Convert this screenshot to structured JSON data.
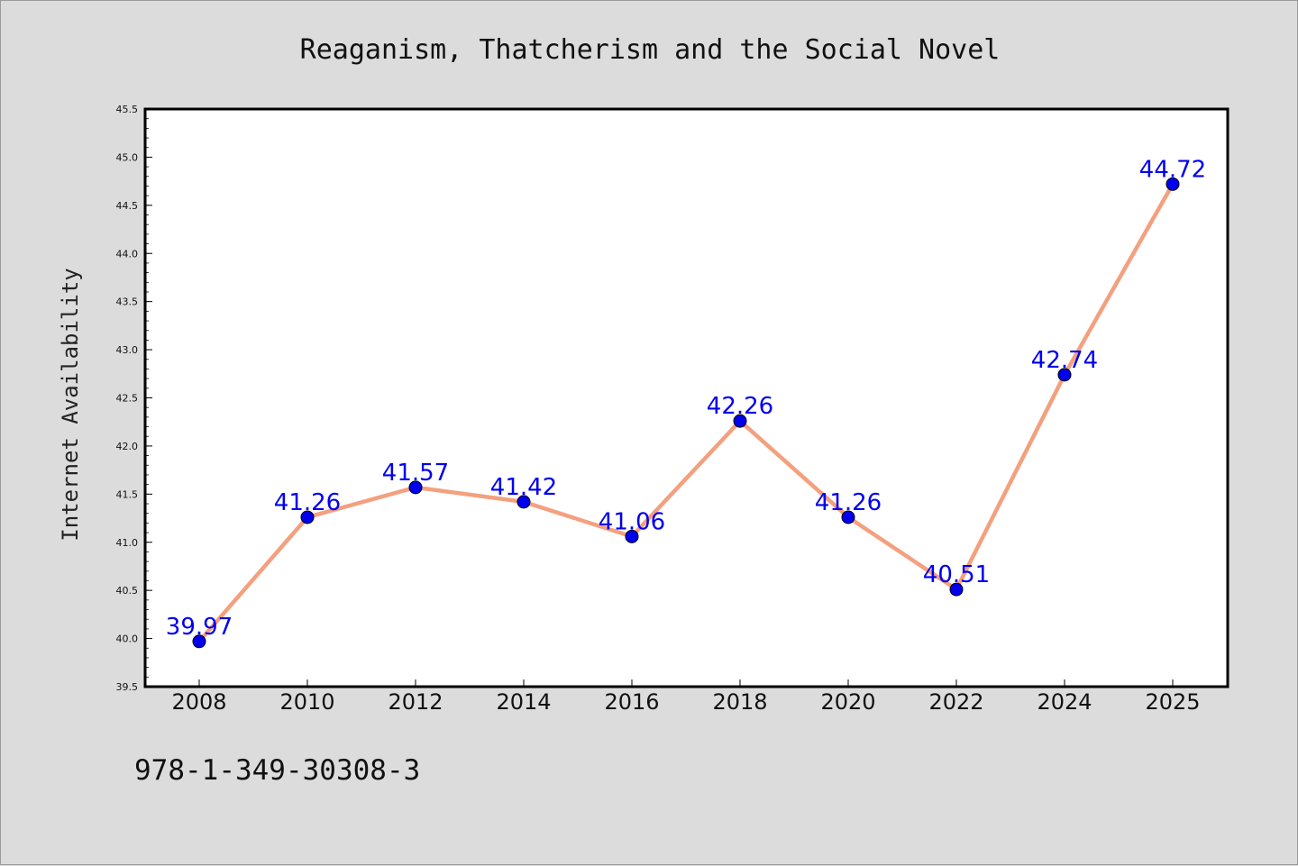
{
  "chart_data": {
    "type": "line",
    "title": "Reaganism, Thatcherism and the Social Novel",
    "xlabel": "",
    "ylabel": "Internet Availability",
    "categories": [
      "2008",
      "2010",
      "2012",
      "2014",
      "2016",
      "2018",
      "2020",
      "2022",
      "2024",
      "2025"
    ],
    "series": [
      {
        "values": [
          39.97,
          41.26,
          41.57,
          41.42,
          41.06,
          42.26,
          41.26,
          40.51,
          42.74,
          44.72
        ],
        "labels": [
          "39.97",
          "41.26",
          "41.57",
          "41.42",
          "41.06",
          "42.26",
          "41.26",
          "40.51",
          "42.74",
          "44.72"
        ],
        "line_color": "#f4a07e",
        "marker_color": "#0000ee",
        "label_color": "#0000ee"
      }
    ],
    "ylim": [
      39.5,
      45.5
    ],
    "yticks": [
      "39.5",
      "40.0",
      "40.5",
      "41.0",
      "41.5",
      "42.0",
      "42.5",
      "43.0",
      "43.5",
      "44.0",
      "44.5",
      "45.0",
      "45.5"
    ],
    "grid": false,
    "legend": "none"
  },
  "footer": {
    "isbn": "978-1-349-30308-3"
  },
  "colors": {
    "background": "#dcdcdc",
    "plot_area": "#ffffff",
    "axis": "#000000"
  }
}
